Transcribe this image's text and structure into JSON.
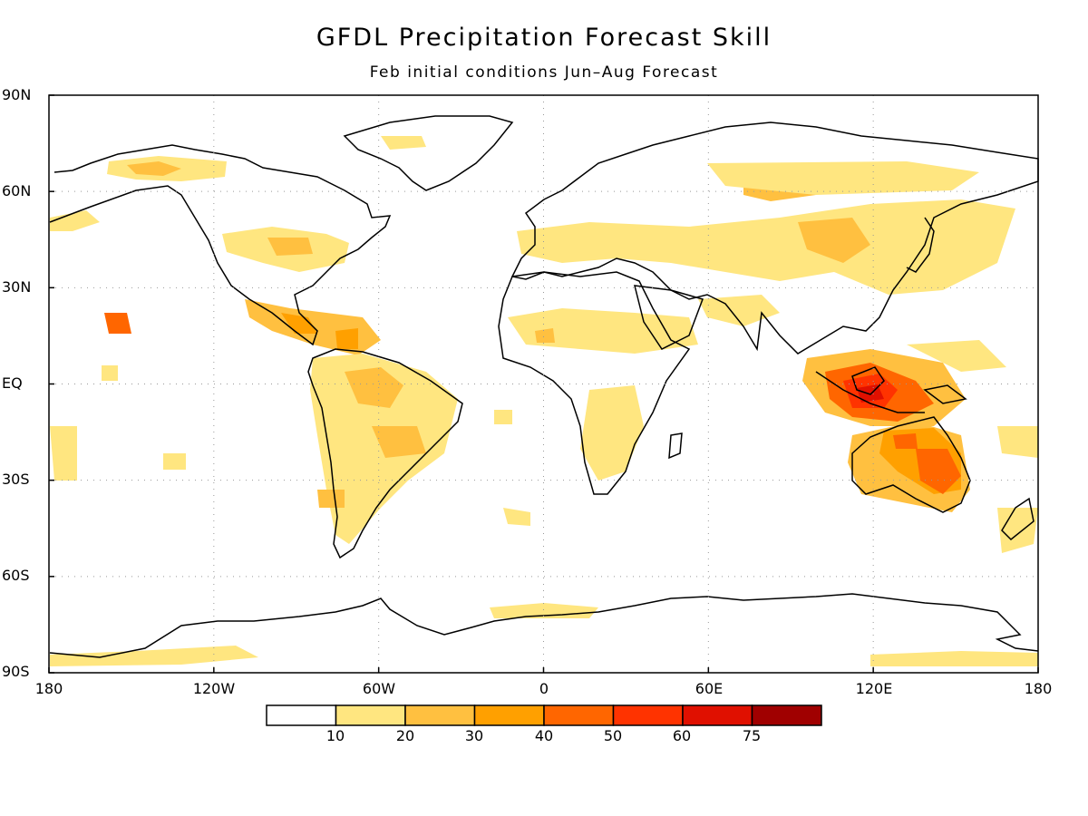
{
  "title": "GFDL Precipitation Forecast Skill",
  "subtitle": "Feb initial conditions   Jun–Aug Forecast",
  "lat_ticks": [
    "90N",
    "60N",
    "30N",
    "EQ",
    "30S",
    "60S",
    "90S"
  ],
  "lon_ticks": [
    "180",
    "120W",
    "60W",
    "0",
    "60E",
    "120E",
    "180"
  ],
  "colorbar": {
    "labels": [
      "10",
      "20",
      "30",
      "40",
      "50",
      "60",
      "75"
    ],
    "colors": [
      "#ffffff",
      "#ffe680",
      "#ffc040",
      "#ffa000",
      "#ff6600",
      "#ff3300",
      "#e01000",
      "#a00000"
    ]
  },
  "map": {
    "projection": "cylindrical-equidistant",
    "lon_range": [
      -180,
      180
    ],
    "lat_range": [
      -90,
      90
    ],
    "grid": "dotted-30deg",
    "variable": "precipitation forecast skill"
  }
}
